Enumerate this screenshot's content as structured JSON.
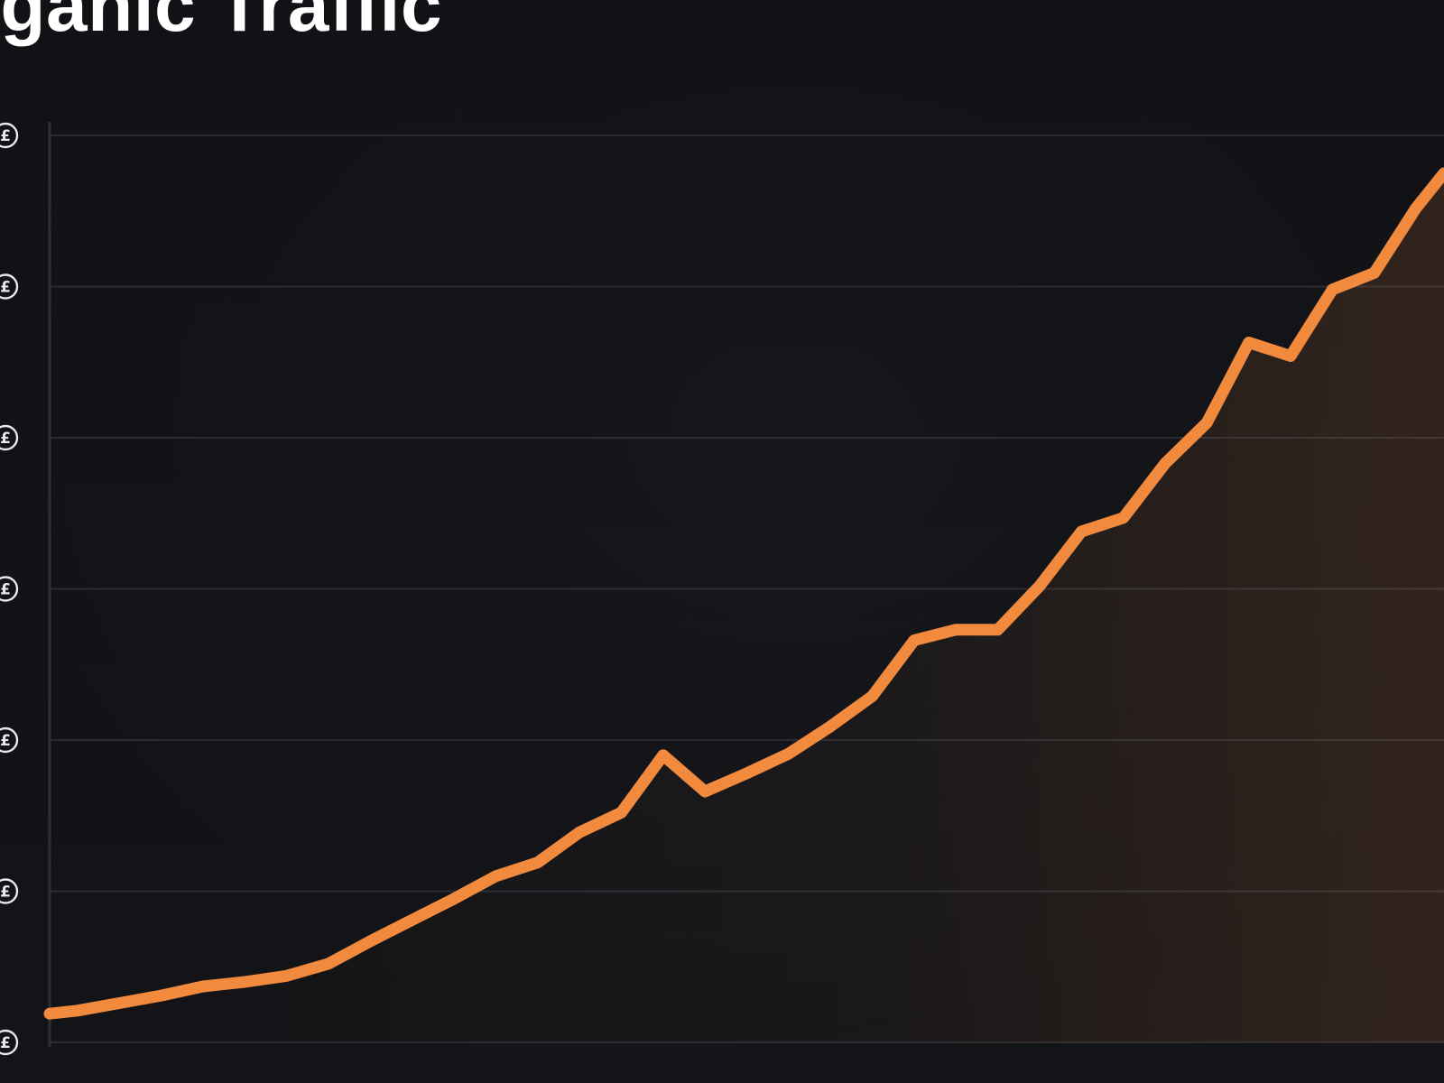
{
  "chart_data": {
    "type": "area",
    "title": "rganic Traffic",
    "xlabel": "",
    "ylabel": "",
    "grid": true,
    "legend": "none",
    "line_color": "#f28a3e",
    "fill_color": "#f28a3e",
    "background_color": "#16171b",
    "y_tick_icons": [
      "currency-icon",
      "currency-icon",
      "currency-icon",
      "currency-icon",
      "currency-icon",
      "currency-icon",
      "currency-icon"
    ],
    "y_tick_values": [
      0,
      1,
      2,
      3,
      4,
      5,
      6
    ],
    "ylim": [
      0,
      6
    ],
    "xlim": [
      0,
      100
    ],
    "series": [
      {
        "x": [
          0,
          2,
          5,
          8,
          11,
          14,
          17,
          20,
          23,
          26,
          29,
          32,
          35,
          38,
          41,
          44,
          47,
          50,
          53,
          56,
          59,
          62,
          65,
          68,
          71,
          74,
          77,
          80,
          83,
          86,
          89,
          92,
          95,
          98,
          100
        ],
        "values": [
          0.19,
          0.21,
          0.26,
          0.31,
          0.37,
          0.4,
          0.44,
          0.52,
          0.67,
          0.81,
          0.95,
          1.1,
          1.19,
          1.39,
          1.52,
          1.9,
          1.66,
          1.78,
          1.91,
          2.09,
          2.29,
          2.66,
          2.73,
          2.73,
          3.02,
          3.38,
          3.47,
          3.83,
          4.1,
          4.63,
          4.54,
          4.98,
          5.09,
          5.52,
          5.75
        ]
      }
    ]
  }
}
